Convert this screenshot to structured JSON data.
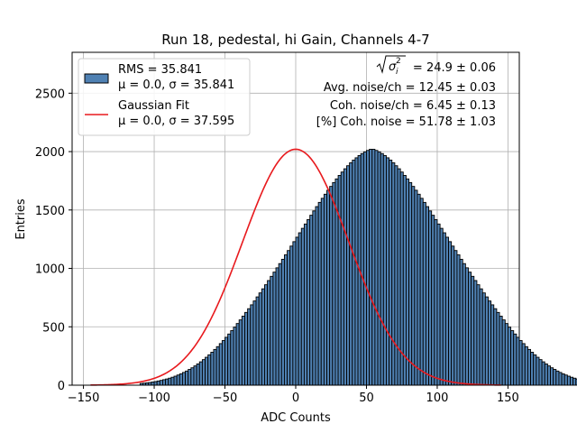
{
  "chart_data": {
    "type": "bar",
    "title": "Run 18, pedestal, hi Gain, Channels 4-7",
    "xlabel": "ADC Counts",
    "ylabel": "Entries",
    "xlim": [
      -158,
      158
    ],
    "ylim": [
      0,
      2850
    ],
    "xticks": [
      -150,
      -100,
      -50,
      0,
      50,
      100,
      150
    ],
    "yticks": [
      0,
      500,
      1000,
      1500,
      2000,
      2500
    ],
    "grid": true,
    "legend_position": "top-left",
    "histogram": {
      "label": "RMS = 35.841",
      "stats_line": "μ = 0.0, σ = 35.841",
      "mean": 0.0,
      "sigma": 35.841,
      "bin_start": -110,
      "bin_width": 2,
      "values": [
        15,
        17,
        20,
        23,
        27,
        31,
        36,
        41,
        47,
        53,
        60,
        68,
        77,
        87,
        97,
        109,
        121,
        135,
        149,
        165,
        182,
        200,
        219,
        239,
        260,
        282,
        306,
        330,
        356,
        382,
        410,
        438,
        467,
        497,
        528,
        559,
        591,
        623,
        655,
        688,
        721,
        756,
        790,
        825,
        860,
        896,
        932,
        968,
        1005,
        1041,
        1078,
        1116,
        1153,
        1191,
        1229,
        1267,
        1305,
        1343,
        1380,
        1418,
        1455,
        1492,
        1529,
        1565,
        1600,
        1635,
        1669,
        1702,
        1735,
        1766,
        1796,
        1825,
        1853,
        1879,
        1904,
        1927,
        1947,
        1966,
        1983,
        1998,
        2010,
        2020,
        2020,
        2010,
        1998,
        1983,
        1966,
        1947,
        1927,
        1904,
        1879,
        1853,
        1825,
        1796,
        1766,
        1735,
        1702,
        1669,
        1635,
        1600,
        1565,
        1529,
        1492,
        1455,
        1418,
        1380,
        1343,
        1305,
        1267,
        1229,
        1191,
        1153,
        1116,
        1078,
        1041,
        1005,
        968,
        932,
        896,
        860,
        825,
        790,
        756,
        721,
        688,
        655,
        623,
        591,
        559,
        528,
        497,
        467,
        438,
        410,
        382,
        356,
        330,
        306,
        282,
        260,
        239,
        219,
        200,
        182,
        165,
        149,
        135,
        121,
        109,
        97,
        87,
        77,
        68,
        60,
        53,
        47,
        41,
        36,
        31,
        27,
        23,
        20,
        17,
        15
      ],
      "color": "#4f81b3",
      "edge_color": "#000000"
    },
    "fit": {
      "label": "Gaussian Fit",
      "stats_line": "μ = 0.0, σ = 37.595",
      "mean": 0.0,
      "sigma": 37.595,
      "amplitude": 2020,
      "x_range": [
        -145,
        145
      ],
      "color": "#e8191d"
    },
    "annotations": {
      "sigma_value": "= 24.9 ± 0.06",
      "avg_noise": "Avg. noise/ch = 12.45 ± 0.03",
      "coh_noise": "Coh. noise/ch = 6.45 ± 0.13",
      "coh_percent": "[%] Coh. noise = 51.78 ± 1.03"
    }
  }
}
